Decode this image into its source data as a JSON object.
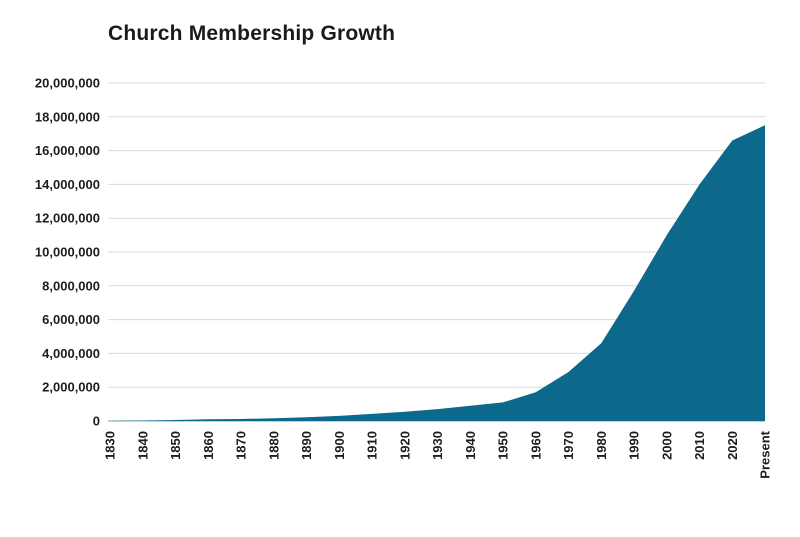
{
  "page": {
    "background_color": "#ffffff"
  },
  "chart_data": {
    "type": "area",
    "title": "Church Membership Growth",
    "categories": [
      "1830",
      "1840",
      "1850",
      "1860",
      "1870",
      "1880",
      "1890",
      "1900",
      "1910",
      "1920",
      "1930",
      "1940",
      "1950",
      "1960",
      "1970",
      "1980",
      "1990",
      "2000",
      "2010",
      "2020",
      "Present"
    ],
    "values": [
      10000,
      30000,
      60000,
      100000,
      120000,
      160000,
      220000,
      300000,
      420000,
      550000,
      700000,
      900000,
      1100000,
      1700000,
      2900000,
      4600000,
      7700000,
      11000000,
      14000000,
      16600000,
      17500000
    ],
    "xlabel": "",
    "ylabel": "",
    "ylim": [
      0,
      20000000
    ],
    "ytick_step": 2000000,
    "grid": true,
    "legend": "none",
    "colors": {
      "area_fill": "#0d698c",
      "gridline": "#d9d9d9",
      "axis_line": "#9a9a9a",
      "text": "#1d1d1d",
      "title_text": "#1a1a1a"
    }
  }
}
